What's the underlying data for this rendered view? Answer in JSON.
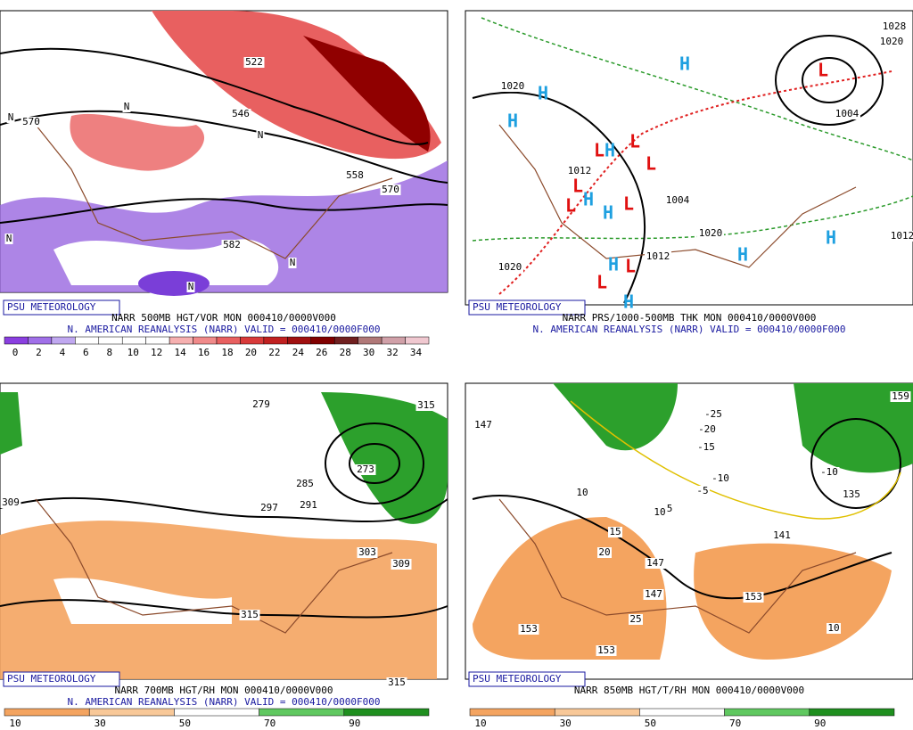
{
  "panels": [
    {
      "brand": "PSU METEOROLOGY",
      "caption1": "NARR 500MB HGT/VOR MON 000410/0000V000",
      "caption2": "N. AMERICAN REANALYSIS (NARR) VALID = 000410/0000F000",
      "colorbar": {
        "ticks": [
          0,
          2,
          4,
          6,
          8,
          10,
          12,
          14,
          16,
          18,
          20,
          22,
          24,
          26,
          28,
          30,
          32,
          34
        ],
        "colors": [
          "#8a3fe0",
          "#a070e8",
          "#c0a8f0",
          "#ffffff",
          "#ffffff",
          "#ffffff",
          "#ffffff",
          "#f6b0b0",
          "#f08a8a",
          "#e86060",
          "#d83a3a",
          "#c02020",
          "#a01010",
          "#800000",
          "#702020",
          "#b07878",
          "#d0a0a8",
          "#f0c8d0"
        ]
      },
      "labels": [
        "570",
        "522",
        "546",
        "558",
        "570",
        "582",
        "N",
        "N",
        "N",
        "N",
        "N",
        "N"
      ]
    },
    {
      "brand": "PSU METEOROLOGY",
      "caption1": "NARR PRS/1000-500MB THK MON 000410/0000V000",
      "caption2": "N. AMERICAN REANALYSIS (NARR) VALID = 000410/0000F000",
      "labels": [
        "1020",
        "1012",
        "1004",
        "1020",
        "1012",
        "1020",
        "1004",
        "1020",
        "1028",
        "1012",
        "H",
        "H",
        "H",
        "H",
        "H",
        "H",
        "H",
        "H",
        "H",
        "H",
        "L",
        "L",
        "L",
        "L",
        "L",
        "L",
        "L",
        "L",
        "L"
      ]
    },
    {
      "brand": "PSU METEOROLOGY",
      "caption1": "NARR 700MB HGT/RH MON 000410/0000V000",
      "caption2": "N. AMERICAN REANALYSIS (NARR) VALID = 000410/0000F000",
      "colorbar": {
        "ticks": [
          10,
          30,
          50,
          70,
          90
        ],
        "colors": [
          "#f4a460",
          "#f8c898",
          "#ffffff",
          "#60c860",
          "#1f8f1f"
        ]
      },
      "labels": [
        "279",
        "315",
        "309",
        "297",
        "291",
        "285",
        "273",
        "303",
        "309",
        "315",
        "315"
      ]
    },
    {
      "brand": "PSU METEOROLOGY",
      "caption1": "NARR 850MB HGT/T/RH MON 000410/0000V000",
      "colorbar": {
        "ticks": [
          10,
          30,
          50,
          70,
          90
        ],
        "colors": [
          "#f4a460",
          "#f8c898",
          "#ffffff",
          "#60c860",
          "#1f8f1f"
        ]
      },
      "labels": [
        "147",
        "-25",
        "-20",
        "-15",
        "-10",
        "-5",
        "-10",
        "5",
        "10",
        "10",
        "15",
        "20",
        "25",
        "153",
        "153",
        "147",
        "147",
        "153",
        "135",
        "141",
        "10",
        "159"
      ]
    }
  ]
}
